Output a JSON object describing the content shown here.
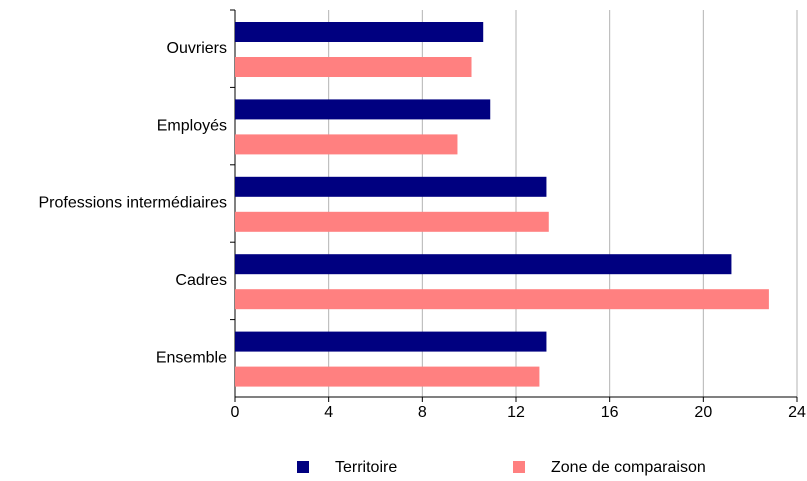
{
  "chart_data": {
    "type": "hbar",
    "categories": [
      "Ouvriers",
      "Employés",
      "Professions intermédiaires",
      "Cadres",
      "Ensemble"
    ],
    "series": [
      {
        "name": "Territoire",
        "color": "#000080",
        "values": [
          10.6,
          10.9,
          13.3,
          21.2,
          13.3
        ]
      },
      {
        "name": "Zone de comparaison",
        "color": "#ff8080",
        "values": [
          10.1,
          9.5,
          13.4,
          22.8,
          13.0
        ]
      }
    ],
    "xlim": [
      0,
      24
    ],
    "xticks": [
      0,
      4,
      8,
      12,
      16,
      20,
      24
    ],
    "grid": true,
    "legend": "bottom"
  }
}
